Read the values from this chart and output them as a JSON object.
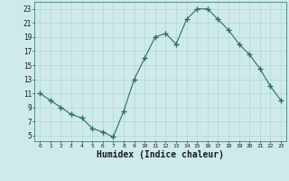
{
  "x": [
    0,
    1,
    2,
    3,
    4,
    5,
    6,
    7,
    8,
    9,
    10,
    11,
    12,
    13,
    14,
    15,
    16,
    17,
    18,
    19,
    20,
    21,
    22,
    23
  ],
  "y": [
    11,
    10,
    9,
    8,
    7.5,
    6,
    5.5,
    4.8,
    8.5,
    13,
    16,
    19,
    19.5,
    18,
    21.5,
    23,
    23,
    21.5,
    20,
    18,
    16.5,
    14.5,
    12,
    10
  ],
  "line_color": "#2e6b6b",
  "marker": "+",
  "marker_size": 4,
  "marker_lw": 1.0,
  "background_color": "#ceeaea",
  "grid_color": "#b8d4d4",
  "xlabel": "Humidex (Indice chaleur)",
  "xlabel_fontsize": 7,
  "ytick_labels": [
    "5",
    "7",
    "9",
    "11",
    "13",
    "15",
    "17",
    "19",
    "21",
    "23"
  ],
  "ytick_vals": [
    5,
    7,
    9,
    11,
    13,
    15,
    17,
    19,
    21,
    23
  ],
  "xtick_vals": [
    0,
    1,
    2,
    3,
    4,
    5,
    6,
    7,
    8,
    9,
    10,
    11,
    12,
    13,
    14,
    15,
    16,
    17,
    18,
    19,
    20,
    21,
    22,
    23
  ],
  "ylim": [
    4.2,
    24.0
  ],
  "xlim": [
    -0.5,
    23.5
  ]
}
